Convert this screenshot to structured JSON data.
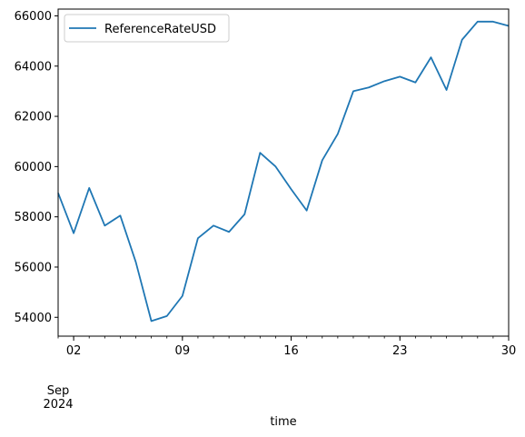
{
  "chart_data": {
    "type": "line",
    "title": "",
    "xlabel": "time",
    "ylabel": "",
    "x": [
      "2024-09-01",
      "2024-09-02",
      "2024-09-03",
      "2024-09-04",
      "2024-09-05",
      "2024-09-06",
      "2024-09-07",
      "2024-09-08",
      "2024-09-09",
      "2024-09-10",
      "2024-09-11",
      "2024-09-12",
      "2024-09-13",
      "2024-09-14",
      "2024-09-15",
      "2024-09-16",
      "2024-09-17",
      "2024-09-18",
      "2024-09-19",
      "2024-09-20",
      "2024-09-21",
      "2024-09-22",
      "2024-09-23",
      "2024-09-24",
      "2024-09-25",
      "2024-09-26",
      "2024-09-27",
      "2024-09-28",
      "2024-09-29",
      "2024-09-30"
    ],
    "series": [
      {
        "name": "ReferenceRateUSD",
        "color": "#1f77b4",
        "values": [
          58950,
          57350,
          59150,
          57650,
          58050,
          56200,
          53850,
          54050,
          54850,
          57150,
          57650,
          57400,
          58100,
          60550,
          60000,
          59100,
          58250,
          60250,
          61300,
          63000,
          63150,
          63400,
          63580,
          63350,
          64350,
          63050,
          65050,
          65770,
          65770,
          65600
        ]
      }
    ],
    "ylim": [
      53250,
      66270
    ],
    "yticks": [
      "54000",
      "56000",
      "58000",
      "60000",
      "62000",
      "64000",
      "66000"
    ],
    "xticks": [
      {
        "date": "2024-09-02",
        "label": "02"
      },
      {
        "date": "2024-09-09",
        "label": "09"
      },
      {
        "date": "2024-09-16",
        "label": "16"
      },
      {
        "date": "2024-09-23",
        "label": "23"
      },
      {
        "date": "2024-09-30",
        "label": "30"
      }
    ],
    "month_label": "Sep",
    "year_label": "2024",
    "legend_position": "top-left",
    "grid": false
  }
}
